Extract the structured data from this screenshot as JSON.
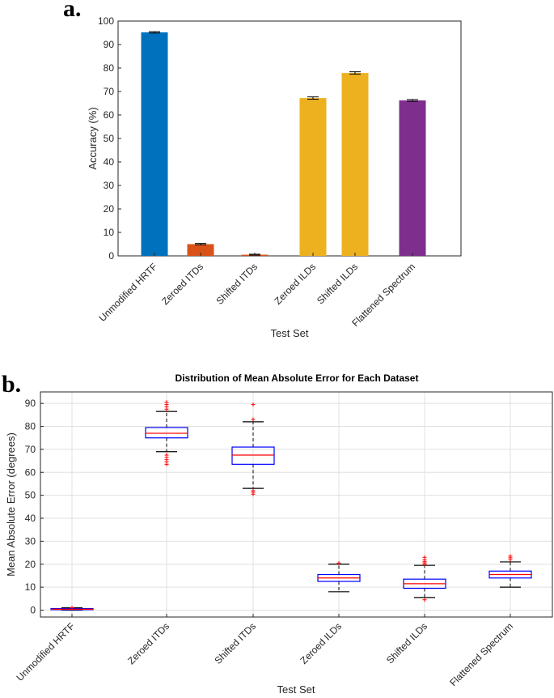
{
  "chart_data": [
    {
      "type": "bar",
      "panel_label": "a.",
      "title": "",
      "xlabel": "Test Set",
      "ylabel": "Accuracy (%)",
      "ylim": [
        0,
        100
      ],
      "yticks": [
        0,
        10,
        20,
        30,
        40,
        50,
        60,
        70,
        80,
        90,
        100
      ],
      "grid": false,
      "categories": [
        "Unmodified HRTF",
        "Zeroed ITDs",
        "Shifted ITDs",
        "Zeroed ILDs",
        "Shifted ILDs",
        "Flattened Spectrum"
      ],
      "values": [
        95.2,
        5.0,
        0.5,
        67.2,
        77.9,
        66.2
      ],
      "errors": [
        0.3,
        0.3,
        0.2,
        0.5,
        0.5,
        0.4
      ],
      "colors": [
        "#0072BD",
        "#D95319",
        "#D95319",
        "#EDB120",
        "#EDB120",
        "#7E2F8E"
      ]
    },
    {
      "type": "box",
      "panel_label": "b.",
      "title": "Distribution of Mean Absolute Error for Each Dataset",
      "xlabel": "Test Set",
      "ylabel": "Mean Absolute Error (degrees)",
      "ylim": [
        -3,
        95
      ],
      "yticks": [
        0,
        10,
        20,
        30,
        40,
        50,
        60,
        70,
        80,
        90
      ],
      "grid": true,
      "box_color": "#0000FF",
      "median_color": "#FF0000",
      "outlier_color": "#FF0000",
      "categories": [
        "Unmodified HRTF",
        "Zeroed ITDs",
        "Shifted ITDs",
        "Zeroed ILDs",
        "Shifted ILDs",
        "Flattened Spectrum"
      ],
      "series": [
        {
          "name": "Unmodified HRTF",
          "whisker_low": 0.0,
          "q1": 0.2,
          "median": 0.4,
          "q3": 0.7,
          "whisker_high": 1.0,
          "outliers": [
            1.1
          ]
        },
        {
          "name": "Zeroed ITDs",
          "whisker_low": 69,
          "q1": 75,
          "median": 77,
          "q3": 79.5,
          "whisker_high": 86.5,
          "outliers": [
            63.5,
            64.5,
            65.5,
            66.5,
            67.5,
            87.5,
            88.5,
            89.5,
            90.5
          ]
        },
        {
          "name": "Shifted ITDs",
          "whisker_low": 53,
          "q1": 63.5,
          "median": 67.5,
          "q3": 71,
          "whisker_high": 82,
          "outliers": [
            50.5,
            51.3,
            52.0,
            83.0,
            89.5
          ]
        },
        {
          "name": "Zeroed ILDs",
          "whisker_low": 8,
          "q1": 12.5,
          "median": 14,
          "q3": 15.5,
          "whisker_high": 20,
          "outliers": [
            20.5
          ]
        },
        {
          "name": "Shifted ILDs",
          "whisker_low": 5.5,
          "q1": 9.5,
          "median": 11.5,
          "q3": 13.5,
          "whisker_high": 19.5,
          "outliers": [
            4.5,
            20.0,
            20.6,
            21.2,
            22.0,
            23.0
          ]
        },
        {
          "name": "Flattened Spectrum",
          "whisker_low": 10,
          "q1": 14,
          "median": 15.5,
          "q3": 17,
          "whisker_high": 21,
          "outliers": [
            22.0,
            22.8,
            23.5
          ]
        }
      ]
    }
  ]
}
